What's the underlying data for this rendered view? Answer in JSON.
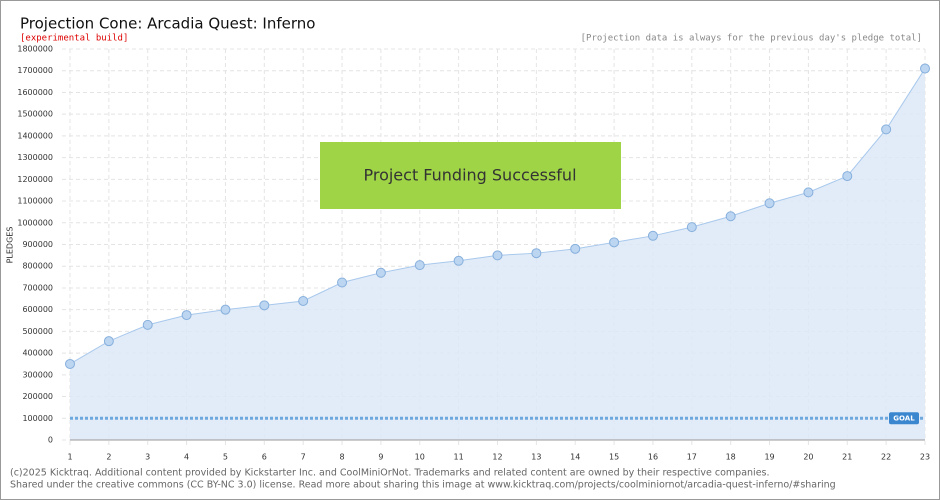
{
  "chart_data": {
    "type": "line",
    "title": "Projection Cone: Arcadia Quest: Inferno",
    "subtitle": "[experimental build]",
    "note": "[Projection data is always for the previous day's pledge total]",
    "banner": "Project Funding Successful",
    "ylabel": "PLEDGES",
    "x": [
      1,
      2,
      3,
      4,
      5,
      6,
      7,
      8,
      9,
      10,
      11,
      12,
      13,
      14,
      15,
      16,
      17,
      18,
      19,
      20,
      21,
      22,
      23
    ],
    "values": [
      350000,
      455000,
      530000,
      575000,
      600000,
      620000,
      640000,
      725000,
      770000,
      805000,
      825000,
      850000,
      860000,
      880000,
      910000,
      940000,
      980000,
      1030000,
      1090000,
      1140000,
      1215000,
      1430000,
      1710000
    ],
    "color": "#a8c8ec",
    "goal": 100000,
    "goal_label": "GOAL",
    "xlim": [
      1,
      23
    ],
    "xticks": [
      1,
      2,
      3,
      4,
      5,
      6,
      7,
      8,
      9,
      10,
      11,
      12,
      13,
      14,
      15,
      16,
      17,
      18,
      19,
      20,
      21,
      22,
      23
    ],
    "ylim": [
      0,
      1800000
    ],
    "yticks": [
      0,
      100000,
      200000,
      300000,
      400000,
      500000,
      600000,
      700000,
      800000,
      900000,
      1000000,
      1100000,
      1200000,
      1300000,
      1400000,
      1500000,
      1600000,
      1700000,
      1800000
    ],
    "grid": true,
    "footer": [
      "(c)2025 Kicktraq. Additional content provided by Kickstarter Inc. and CoolMiniOrNot. Trademarks and related content are owned by their respective companies.",
      "Shared under the creative commons (CC BY-NC 3.0) license. Read more about sharing this image at www.kicktraq.com/projects/coolminiornot/arcadia-quest-inferno/#sharing"
    ]
  }
}
